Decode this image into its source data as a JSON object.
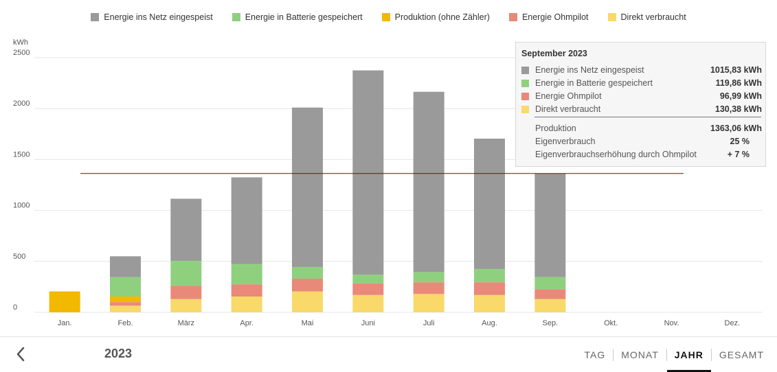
{
  "legend": [
    {
      "label": "Energie ins Netz eingespeist",
      "color": "#9a9a9a"
    },
    {
      "label": "Energie in Batterie gespeichert",
      "color": "#8fd07f"
    },
    {
      "label": "Produktion (ohne Zähler)",
      "color": "#f3b800"
    },
    {
      "label": "Energie Ohmpilot",
      "color": "#e9897a"
    },
    {
      "label": "Direkt verbraucht",
      "color": "#f8d96a"
    }
  ],
  "chart_data": {
    "type": "bar",
    "stacked": true,
    "ylabel": "kWh",
    "ylim": [
      0,
      2500
    ],
    "yticks": [
      0,
      500,
      1000,
      1500,
      2000,
      2500
    ],
    "grid": true,
    "categories": [
      "Jan.",
      "Feb.",
      "März",
      "Apr.",
      "Mai",
      "Juni",
      "Juli",
      "Aug.",
      "Sep.",
      "Okt.",
      "Nov.",
      "Dez."
    ],
    "series": [
      {
        "name": "Direkt verbraucht",
        "color": "#f8d96a",
        "values": [
          0,
          65,
          130,
          155,
          205,
          170,
          180,
          170,
          130.38,
          0,
          0,
          0
        ]
      },
      {
        "name": "Energie Ohmpilot",
        "color": "#e9897a",
        "values": [
          0,
          35,
          130,
          120,
          125,
          115,
          115,
          125,
          96.99,
          0,
          0,
          0
        ]
      },
      {
        "name": "Produktion (ohne Zähler)",
        "color": "#f3b800",
        "values": [
          205,
          55,
          0,
          0,
          0,
          0,
          0,
          0,
          0,
          0,
          0,
          0
        ]
      },
      {
        "name": "Energie in Batterie gespeichert",
        "color": "#8fd07f",
        "values": [
          0,
          190,
          245,
          200,
          115,
          85,
          100,
          130,
          119.86,
          0,
          0,
          0
        ]
      },
      {
        "name": "Energie ins Netz eingespeist",
        "color": "#9a9a9a",
        "values": [
          0,
          205,
          610,
          850,
          1565,
          2005,
          1770,
          1280,
          1015.83,
          0,
          0,
          0
        ]
      }
    ],
    "reference_line": {
      "value": 1363.06,
      "color": "#8b0000"
    }
  },
  "tooltip": {
    "title": "September 2023",
    "rows": [
      {
        "label": "Energie ins Netz eingespeist",
        "value": "1015,83 kWh",
        "color": "#9a9a9a"
      },
      {
        "label": "Energie in Batterie gespeichert",
        "value": "119,86 kWh",
        "color": "#8fd07f"
      },
      {
        "label": "Energie Ohmpilot",
        "value": "96,99 kWh",
        "color": "#e9897a"
      },
      {
        "label": "Direkt verbraucht",
        "value": "130,38 kWh",
        "color": "#f8d96a"
      }
    ],
    "production_label": "Produktion",
    "production_value": "1363,06 kWh",
    "own_label": "Eigenverbrauch",
    "own_value": "25 %",
    "ohm_label": "Eigenverbrauchserhöhung durch Ohmpilot",
    "ohm_value": "+ 7 %"
  },
  "footer": {
    "year": "2023",
    "tabs": [
      "TAG",
      "MONAT",
      "JAHR",
      "GESAMT"
    ],
    "active_tab": "JAHR"
  }
}
